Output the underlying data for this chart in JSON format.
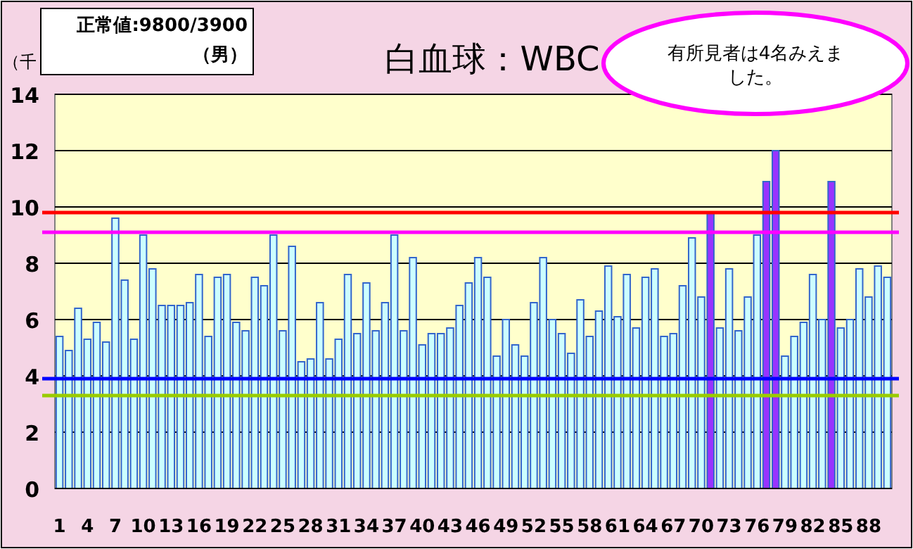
{
  "chart_data": {
    "type": "bar",
    "title": "白血球：WBC",
    "ylabel": "（千",
    "categories": [
      "1",
      null,
      null,
      "4",
      null,
      null,
      "7",
      null,
      null,
      "10",
      null,
      null,
      "13",
      null,
      null,
      "16",
      null,
      null,
      "19",
      null,
      null,
      "22",
      null,
      null,
      "25",
      null,
      null,
      "28",
      null,
      null,
      "31",
      null,
      null,
      "34",
      null,
      null,
      "37",
      null,
      null,
      "40",
      null,
      null,
      "43",
      null,
      null,
      "46",
      null,
      null,
      "49",
      null,
      null,
      "52",
      null,
      null,
      "55",
      null,
      null,
      "58",
      null,
      null,
      "61",
      null,
      null,
      "64",
      null,
      null,
      "67",
      null,
      null,
      "70",
      null,
      null,
      "73",
      null,
      null,
      "76",
      null,
      null,
      "79",
      null,
      null,
      "82",
      null,
      null,
      "85",
      null,
      null,
      "88",
      null,
      null
    ],
    "values": [
      5.4,
      4.9,
      6.4,
      5.3,
      5.9,
      5.2,
      9.6,
      7.4,
      5.3,
      9.0,
      7.8,
      6.5,
      6.5,
      6.5,
      6.6,
      7.6,
      5.4,
      7.5,
      7.6,
      5.9,
      5.6,
      7.5,
      7.2,
      9.0,
      5.6,
      8.6,
      4.5,
      4.6,
      6.6,
      4.6,
      5.3,
      7.6,
      5.5,
      7.3,
      5.6,
      6.6,
      9.0,
      5.6,
      8.2,
      5.1,
      5.5,
      5.5,
      5.7,
      6.5,
      7.3,
      8.2,
      7.5,
      4.7,
      6.0,
      5.1,
      4.7,
      6.6,
      8.2,
      6.0,
      5.5,
      4.8,
      6.7,
      5.4,
      6.3,
      7.9,
      6.1,
      7.6,
      5.7,
      7.5,
      7.8,
      5.4,
      5.5,
      7.2,
      8.9,
      6.8,
      9.8,
      5.7,
      7.8,
      5.6,
      6.8,
      9.0,
      10.9,
      12.0,
      4.7,
      5.4,
      5.9,
      7.6,
      6.0,
      10.9,
      5.7,
      6.0,
      7.8,
      6.8,
      7.9,
      7.5
    ],
    "colors": [
      "#ccffff",
      "#ccffff",
      "#ccffff",
      "#ccffff",
      "#ccffff",
      "#ccffff",
      "#ccffff",
      "#ccffff",
      "#ccffff",
      "#ccffff",
      "#ccffff",
      "#ccffff",
      "#ccffff",
      "#ccffff",
      "#ccffff",
      "#ccffff",
      "#ccffff",
      "#ccffff",
      "#ccffff",
      "#ccffff",
      "#ccffff",
      "#ccffff",
      "#ccffff",
      "#ccffff",
      "#ccffff",
      "#ccffff",
      "#ccffff",
      "#ccffff",
      "#ccffff",
      "#ccffff",
      "#ccffff",
      "#ccffff",
      "#ccffff",
      "#ccffff",
      "#ccffff",
      "#ccffff",
      "#ccffff",
      "#ccffff",
      "#ccffff",
      "#ccffff",
      "#ccffff",
      "#ccffff",
      "#ccffff",
      "#ccffff",
      "#ccffff",
      "#ccffff",
      "#ccffff",
      "#ccffff",
      "#ccffff",
      "#ccffff",
      "#ccffff",
      "#ccffff",
      "#ccffff",
      "#ccffff",
      "#ccffff",
      "#ccffff",
      "#ccffff",
      "#ccffff",
      "#ccffff",
      "#ccffff",
      "#ccffff",
      "#ccffff",
      "#ccffff",
      "#ccffff",
      "#ccffff",
      "#ccffff",
      "#ccffff",
      "#ccffff",
      "#ccffff",
      "#ccffff",
      "#9933ff",
      "#ccffff",
      "#ccffff",
      "#ccffff",
      "#ccffff",
      "#ccffff",
      "#9933ff",
      "#9933ff",
      "#ccffff",
      "#ccffff",
      "#ccffff",
      "#ccffff",
      "#ccffff",
      "#9933ff",
      "#ccffff",
      "#ccffff",
      "#ccffff",
      "#ccffff",
      "#ccffff",
      "#ccffff"
    ],
    "ylim": [
      0,
      14
    ],
    "yticks": [
      0,
      2,
      4,
      6,
      8,
      10,
      12,
      14
    ],
    "grid": "y",
    "ref_lines": [
      {
        "axis": "y",
        "value": 9.8,
        "color": "#ff0000"
      },
      {
        "axis": "y",
        "value": 9.1,
        "color": "#ff00ff"
      },
      {
        "axis": "y",
        "value": 3.9,
        "color": "#0000ff"
      },
      {
        "axis": "y",
        "value": 3.3,
        "color": "#99cc00"
      }
    ],
    "annotations": [
      "正常値:9800/3900",
      "（男）",
      "有所見者は4名みえました。"
    ]
  }
}
